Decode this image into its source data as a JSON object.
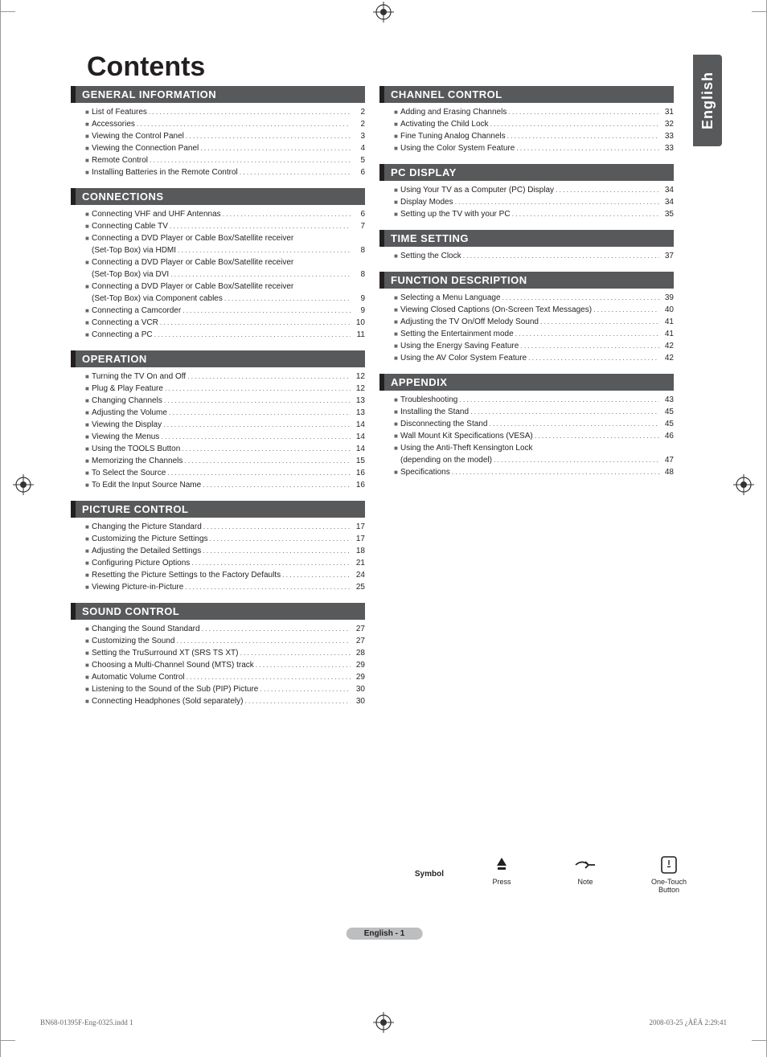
{
  "lang_tab": "English",
  "title": "Contents",
  "page_marker": "English - 1",
  "footer_left": "BN68-01395F-Eng-0325.indd   1",
  "footer_right": "2008-03-25   ¿ÀÈÄ 2:29:41",
  "symbol_legend": {
    "label": "Symbol",
    "items": [
      {
        "caption": "Press"
      },
      {
        "caption": "Note"
      },
      {
        "caption1": "One-Touch",
        "caption2": "Button"
      }
    ]
  },
  "left_sections": [
    {
      "title": "GENERAL INFORMATION",
      "items": [
        {
          "label": "List of Features",
          "page": "2"
        },
        {
          "label": "Accessories",
          "page": "2"
        },
        {
          "label": "Viewing the Control Panel",
          "page": "3"
        },
        {
          "label": "Viewing the Connection Panel",
          "page": "4"
        },
        {
          "label": "Remote Control",
          "page": "5"
        },
        {
          "label": "Installing Batteries in the Remote Control",
          "page": "6"
        }
      ]
    },
    {
      "title": "CONNECTIONS",
      "items": [
        {
          "label": "Connecting VHF and UHF Antennas",
          "page": "6"
        },
        {
          "label": "Connecting Cable TV",
          "page": "7"
        },
        {
          "label": "Connecting a DVD Player or Cable Box/Satellite receiver",
          "sublabel": "(Set-Top Box) via HDMI",
          "page": "8",
          "wrap": true
        },
        {
          "label": "Connecting a DVD Player or Cable Box/Satellite receiver",
          "sublabel": "(Set-Top Box) via DVI",
          "page": "8",
          "wrap": true
        },
        {
          "label": "Connecting a DVD Player or Cable Box/Satellite receiver",
          "sublabel": "(Set-Top Box) via Component cables",
          "page": "9",
          "wrap": true
        },
        {
          "label": "Connecting a Camcorder",
          "page": "9"
        },
        {
          "label": "Connecting a VCR",
          "page": "10"
        },
        {
          "label": "Connecting a PC",
          "page": "11"
        }
      ]
    },
    {
      "title": "OPERATION",
      "items": [
        {
          "label": "Turning the TV On and Off",
          "page": "12"
        },
        {
          "label": "Plug & Play Feature",
          "page": "12"
        },
        {
          "label": "Changing Channels",
          "page": "13"
        },
        {
          "label": "Adjusting the Volume",
          "page": "13"
        },
        {
          "label": "Viewing the Display",
          "page": "14"
        },
        {
          "label": "Viewing the Menus",
          "page": "14"
        },
        {
          "label": "Using the TOOLS Button",
          "page": "14"
        },
        {
          "label": "Memorizing the Channels",
          "page": "15"
        },
        {
          "label": "To Select the Source",
          "page": "16"
        },
        {
          "label": "To Edit the Input Source Name",
          "page": "16"
        }
      ]
    },
    {
      "title": "PICTURE CONTROL",
      "items": [
        {
          "label": "Changing the Picture Standard",
          "page": "17"
        },
        {
          "label": "Customizing the Picture Settings",
          "page": "17"
        },
        {
          "label": "Adjusting the Detailed Settings",
          "page": "18"
        },
        {
          "label": "Configuring Picture Options",
          "page": "21"
        },
        {
          "label": "Resetting the Picture Settings to the Factory Defaults",
          "page": "24"
        },
        {
          "label": "Viewing Picture-in-Picture",
          "page": "25"
        }
      ]
    },
    {
      "title": "SOUND CONTROL",
      "items": [
        {
          "label": "Changing the Sound Standard",
          "page": "27"
        },
        {
          "label": "Customizing the Sound",
          "page": "27"
        },
        {
          "label": "Setting the TruSurround XT (SRS TS XT)",
          "page": "28"
        },
        {
          "label": "Choosing a Multi-Channel Sound (MTS) track",
          "page": "29"
        },
        {
          "label": "Automatic Volume Control",
          "page": "29"
        },
        {
          "label": "Listening to the Sound of the Sub (PIP) Picture",
          "page": "30"
        },
        {
          "label": "Connecting Headphones (Sold separately)",
          "page": "30"
        }
      ]
    }
  ],
  "right_sections": [
    {
      "title": "CHANNEL CONTROL",
      "items": [
        {
          "label": "Adding and Erasing Channels",
          "page": "31"
        },
        {
          "label": "Activating the Child Lock",
          "page": "32"
        },
        {
          "label": "Fine Tuning Analog Channels",
          "page": "33"
        },
        {
          "label": "Using the Color System Feature",
          "page": "33"
        }
      ]
    },
    {
      "title": "PC DISPLAY",
      "items": [
        {
          "label": "Using Your TV as a Computer (PC) Display",
          "page": "34"
        },
        {
          "label": "Display Modes",
          "page": "34"
        },
        {
          "label": "Setting up the TV with your PC",
          "page": "35"
        }
      ]
    },
    {
      "title": "TIME SETTING",
      "items": [
        {
          "label": "Setting the Clock",
          "page": "37"
        }
      ]
    },
    {
      "title": "FUNCTION DESCRIPTION",
      "items": [
        {
          "label": "Selecting a Menu Language",
          "page": "39"
        },
        {
          "label": "Viewing Closed Captions (On-Screen Text Messages)",
          "page": "40"
        },
        {
          "label": "Adjusting the TV On/Off Melody Sound",
          "page": "41"
        },
        {
          "label": "Setting the Entertainment mode",
          "page": "41"
        },
        {
          "label": "Using the Energy Saving Feature",
          "page": "42"
        },
        {
          "label": "Using the AV Color System Feature",
          "page": "42"
        }
      ]
    },
    {
      "title": "APPENDIX",
      "items": [
        {
          "label": "Troubleshooting",
          "page": "43"
        },
        {
          "label": "Installing the Stand",
          "page": "45"
        },
        {
          "label": "Disconnecting the Stand",
          "page": "45"
        },
        {
          "label": "Wall Mount Kit Specifications (VESA)",
          "page": "46"
        },
        {
          "label": "Using the Anti-Theft Kensington Lock",
          "sublabel": "(depending on the model)",
          "page": "47",
          "wrap": true
        },
        {
          "label": "Specifications",
          "page": "48"
        }
      ]
    }
  ]
}
